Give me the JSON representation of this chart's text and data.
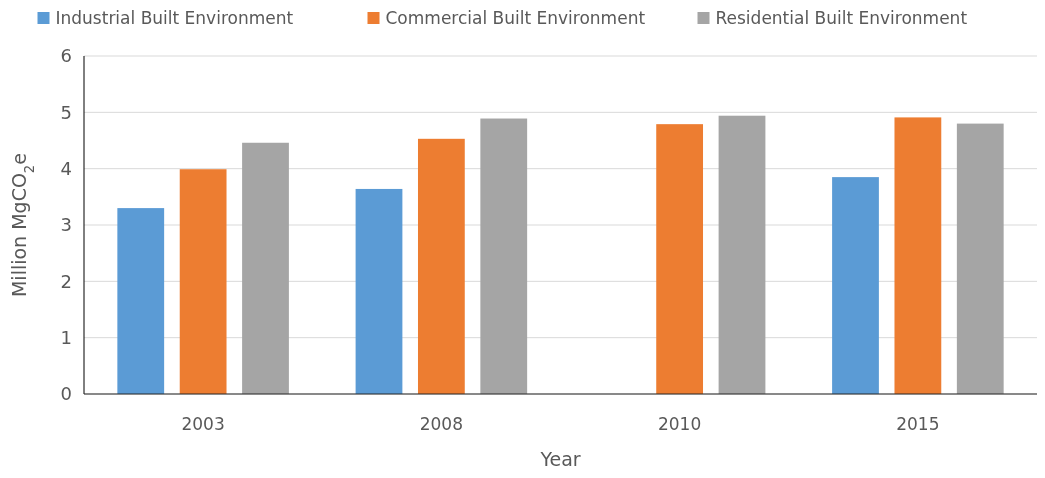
{
  "chart_data": {
    "type": "bar",
    "xlabel": "Year",
    "ylabel": "Million MgCO$_{2}$e",
    "categories": [
      "2003",
      "2008",
      "2010",
      "2015"
    ],
    "series": [
      {
        "name": "Industrial Built Environment",
        "color": "#5b9bd5",
        "values": [
          3.3,
          3.64,
          null,
          3.85
        ]
      },
      {
        "name": "Commercial Built Environment",
        "color": "#ed7d31",
        "values": [
          3.99,
          4.53,
          4.79,
          4.91
        ]
      },
      {
        "name": "Residential Built Environment",
        "color": "#a5a5a5",
        "values": [
          4.46,
          4.89,
          4.94,
          4.8
        ]
      }
    ],
    "ylim": [
      0,
      6
    ],
    "yticks": [
      0,
      1,
      2,
      3,
      4,
      5,
      6
    ],
    "grid": "y",
    "legend": "top"
  }
}
